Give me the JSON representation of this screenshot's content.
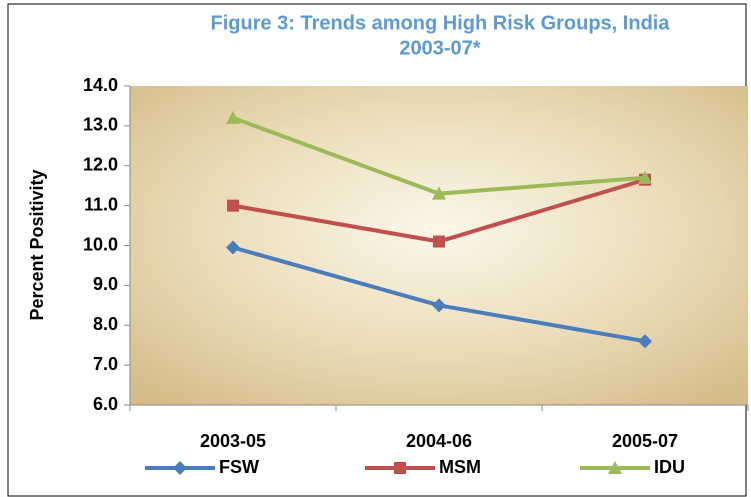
{
  "chart_data": {
    "type": "line",
    "title": [
      "Figure 3: Trends among High Risk Groups, India",
      "2003-07*"
    ],
    "y_label": "Percent Positivity",
    "categories": [
      "2003-05",
      "2004-06",
      "2005-07"
    ],
    "series": [
      {
        "name": "FSW",
        "color": "#4a7ebb",
        "marker": "diamond",
        "values": [
          9.95,
          8.5,
          7.6
        ]
      },
      {
        "name": "MSM",
        "color": "#c0504d",
        "marker": "square",
        "values": [
          11.0,
          10.1,
          11.65
        ]
      },
      {
        "name": "IDU",
        "color": "#9bbb59",
        "marker": "triangle",
        "values": [
          13.2,
          11.3,
          11.7
        ]
      }
    ],
    "ylim": [
      6,
      14
    ],
    "yticks": [
      {
        "value": 6,
        "label": "6.0"
      },
      {
        "value": 7,
        "label": "7.0"
      },
      {
        "value": 8,
        "label": "8.0"
      },
      {
        "value": 9,
        "label": "9.0"
      },
      {
        "value": 10,
        "label": "10.0"
      },
      {
        "value": 11,
        "label": "11.0"
      },
      {
        "value": 12,
        "label": "12.0"
      },
      {
        "value": 13,
        "label": "13.0"
      },
      {
        "value": 14,
        "label": "14.0"
      }
    ],
    "legend": "bottom"
  }
}
